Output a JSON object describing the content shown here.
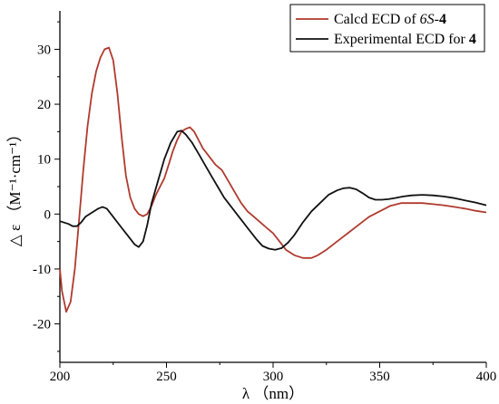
{
  "chart_data": {
    "type": "line",
    "xlabel": "λ （nm）",
    "ylabel": "△ ε （M⁻¹·cm⁻¹）",
    "xlim": [
      200,
      400
    ],
    "ylim": [
      -27,
      37
    ],
    "x_ticks": [
      200,
      250,
      300,
      350,
      400
    ],
    "y_ticks": [
      -20,
      -10,
      0,
      10,
      20,
      30
    ],
    "grid": false,
    "legend_position": "top-right",
    "series": [
      {
        "name": "Calcd ECD of 6S-4",
        "color": "#b03a2e",
        "points": [
          [
            200,
            -10
          ],
          [
            201,
            -14
          ],
          [
            203,
            -17.8
          ],
          [
            205,
            -16
          ],
          [
            207,
            -10
          ],
          [
            209,
            -1
          ],
          [
            211,
            8
          ],
          [
            213,
            16
          ],
          [
            215,
            22
          ],
          [
            217,
            26
          ],
          [
            219,
            28.5
          ],
          [
            221,
            30
          ],
          [
            223,
            30.3
          ],
          [
            225,
            28
          ],
          [
            227,
            22
          ],
          [
            229,
            14
          ],
          [
            231,
            7
          ],
          [
            233,
            3
          ],
          [
            235,
            1
          ],
          [
            237,
            0
          ],
          [
            239,
            -0.4
          ],
          [
            241,
            0
          ],
          [
            243,
            1.5
          ],
          [
            245,
            3.5
          ],
          [
            247,
            5
          ],
          [
            249,
            6.5
          ],
          [
            251,
            9
          ],
          [
            253,
            11.5
          ],
          [
            255,
            13.5
          ],
          [
            257,
            15
          ],
          [
            259,
            15.5
          ],
          [
            261,
            15.8
          ],
          [
            263,
            15
          ],
          [
            265,
            13.5
          ],
          [
            267,
            12
          ],
          [
            270,
            10.5
          ],
          [
            273,
            9
          ],
          [
            276,
            8
          ],
          [
            279,
            6
          ],
          [
            282,
            4
          ],
          [
            285,
            2
          ],
          [
            288,
            0.5
          ],
          [
            291,
            -0.5
          ],
          [
            294,
            -1.5
          ],
          [
            297,
            -2.5
          ],
          [
            300,
            -3.5
          ],
          [
            303,
            -5
          ],
          [
            306,
            -6.5
          ],
          [
            310,
            -7.5
          ],
          [
            314,
            -8
          ],
          [
            318,
            -8
          ],
          [
            321,
            -7.5
          ],
          [
            325,
            -6.5
          ],
          [
            330,
            -5
          ],
          [
            335,
            -3.5
          ],
          [
            340,
            -2
          ],
          [
            345,
            -0.5
          ],
          [
            350,
            0.5
          ],
          [
            355,
            1.5
          ],
          [
            360,
            2
          ],
          [
            365,
            2
          ],
          [
            370,
            2
          ],
          [
            375,
            1.8
          ],
          [
            380,
            1.6
          ],
          [
            385,
            1.3
          ],
          [
            390,
            1
          ],
          [
            395,
            0.6
          ],
          [
            400,
            0.3
          ]
        ]
      },
      {
        "name": "Experimental ECD for 4",
        "color": "#111111",
        "points": [
          [
            200,
            -1.3
          ],
          [
            204,
            -1.8
          ],
          [
            206,
            -2.2
          ],
          [
            208,
            -2.2
          ],
          [
            210,
            -1.5
          ],
          [
            212,
            -0.5
          ],
          [
            214,
            0
          ],
          [
            216,
            0.5
          ],
          [
            218,
            1
          ],
          [
            220,
            1.3
          ],
          [
            222,
            1
          ],
          [
            224,
            0
          ],
          [
            226,
            -1
          ],
          [
            229,
            -2.5
          ],
          [
            232,
            -4
          ],
          [
            235,
            -5.5
          ],
          [
            237,
            -6
          ],
          [
            239,
            -5
          ],
          [
            241,
            -2
          ],
          [
            243,
            2
          ],
          [
            246,
            6
          ],
          [
            249,
            10
          ],
          [
            252,
            13
          ],
          [
            255,
            15
          ],
          [
            257,
            15.2
          ],
          [
            259,
            14.5
          ],
          [
            262,
            13
          ],
          [
            265,
            11
          ],
          [
            268,
            9
          ],
          [
            271,
            7
          ],
          [
            274,
            5
          ],
          [
            277,
            3
          ],
          [
            280,
            1.5
          ],
          [
            283,
            0
          ],
          [
            286,
            -1.5
          ],
          [
            289,
            -3
          ],
          [
            292,
            -4.5
          ],
          [
            295,
            -5.8
          ],
          [
            298,
            -6.3
          ],
          [
            301,
            -6.5
          ],
          [
            304,
            -6.2
          ],
          [
            307,
            -5.2
          ],
          [
            310,
            -3.8
          ],
          [
            314,
            -1.5
          ],
          [
            318,
            0.5
          ],
          [
            322,
            2
          ],
          [
            326,
            3.5
          ],
          [
            330,
            4.3
          ],
          [
            333,
            4.7
          ],
          [
            336,
            4.8
          ],
          [
            339,
            4.5
          ],
          [
            342,
            3.8
          ],
          [
            345,
            3
          ],
          [
            348,
            2.6
          ],
          [
            351,
            2.6
          ],
          [
            354,
            2.7
          ],
          [
            357,
            2.9
          ],
          [
            361,
            3.2
          ],
          [
            365,
            3.4
          ],
          [
            370,
            3.5
          ],
          [
            375,
            3.4
          ],
          [
            380,
            3.2
          ],
          [
            385,
            2.9
          ],
          [
            390,
            2.5
          ],
          [
            395,
            2.1
          ],
          [
            400,
            1.6
          ]
        ]
      }
    ],
    "legend": [
      {
        "prefix": "Calcd ECD of ",
        "italic": "6S",
        "suffix": "-",
        "bold": "4"
      },
      {
        "prefix": "Experimental ECD for ",
        "italic": "",
        "suffix": "",
        "bold": "4"
      }
    ]
  }
}
